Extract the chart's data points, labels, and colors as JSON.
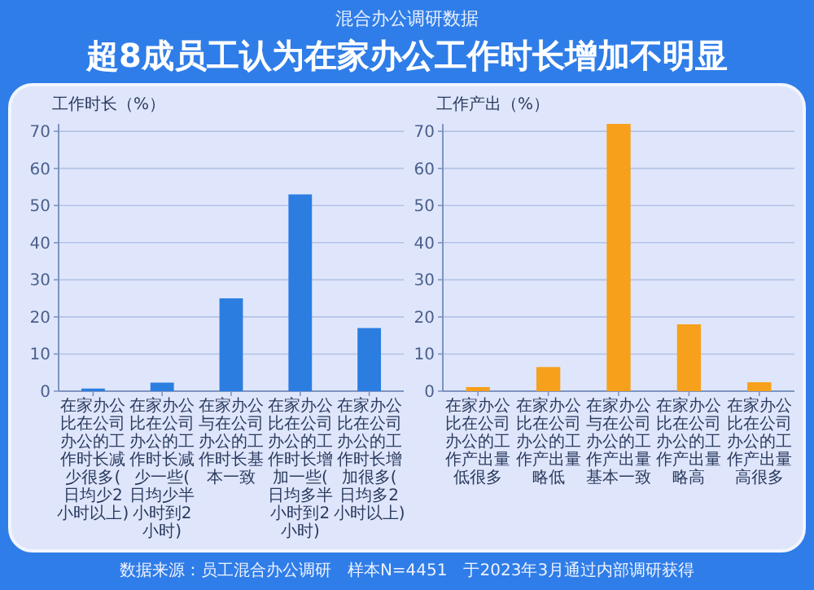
{
  "chart_data": [
    {
      "type": "bar",
      "subtitle": "混合办公调研数据",
      "title": "超8成员工认为在家办公工作时长增加不明显",
      "ylabel": "工作时长（%）",
      "categories": [
        "在家办公比在公司办公的工作时长减少很多(日均少2小时以上)",
        "在家办公比在公司办公的工作时长减少一些(日均少半小时到2小时)",
        "在家办公与在公司办公的工作时长基本一致",
        "在家办公比在公司办公的工作时长增加一些(日均多半小时到2小时)",
        "在家办公比在公司办公的工作时长增加很多(日均多2小时以上)"
      ],
      "values": [
        0.7,
        2.3,
        25,
        53,
        17
      ],
      "color": "#2b7de0",
      "ylim": [
        0,
        72
      ],
      "yticks": [
        0,
        10,
        20,
        30,
        40,
        50,
        60,
        70
      ],
      "grid": "y",
      "annotations": [
        "数据来源：员工混合办公调研　样本N=4451　于2023年3月通过内部调研获得"
      ]
    },
    {
      "type": "bar",
      "ylabel": "工作产出（%）",
      "categories": [
        "在家办公比在公司办公的工作产出量低很多",
        "在家办公比在公司办公的工作产出量略低",
        "在家办公与在公司办公的工作产出量基本一致",
        "在家办公比在公司办公的工作产出量略高",
        "在家办公比在公司办公的工作产出量高很多"
      ],
      "values": [
        1.1,
        6.5,
        72,
        18,
        2.4
      ],
      "color": "#f7a01c",
      "ylim": [
        0,
        72
      ],
      "yticks": [
        0,
        10,
        20,
        30,
        40,
        50,
        60,
        70
      ],
      "grid": "y"
    }
  ]
}
